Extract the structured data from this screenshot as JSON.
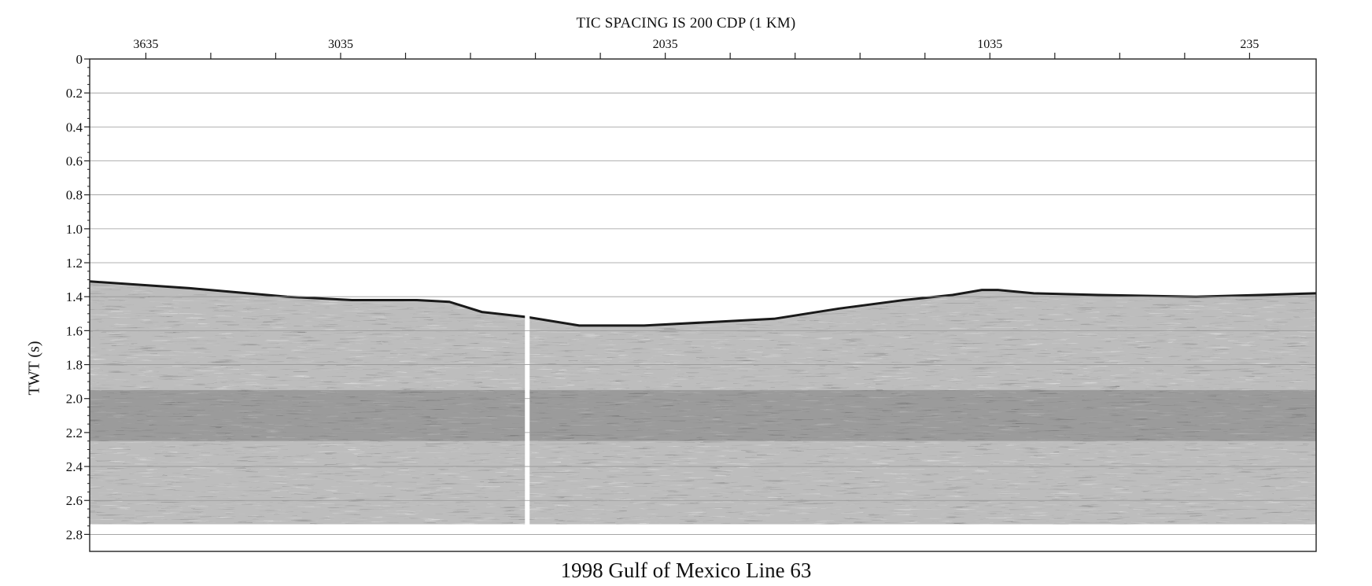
{
  "chart_data": {
    "type": "heatmap",
    "title": "1998 Gulf of Mexico Line 63",
    "subtitle": "TIC SPACING IS 200 CDP (1 KM)",
    "xlabel": "",
    "ylabel": "TWT (s)",
    "x_tick_labels": [
      "3635",
      "3035",
      "2035",
      "1035",
      "235"
    ],
    "x_tick_values": [
      3635,
      3035,
      2035,
      1035,
      235
    ],
    "x_minor_tick_values": [
      3435,
      3235,
      2835,
      2635,
      2435,
      2235,
      1835,
      1635,
      1435,
      1235,
      835,
      635,
      435
    ],
    "xlim": [
      3808,
      30
    ],
    "y_tick_labels": [
      "0",
      "0.2",
      "0.4",
      "0.6",
      "0.8",
      "1.0",
      "1.2",
      "1.4",
      "1.6",
      "1.8",
      "2.0",
      "2.2",
      "2.4",
      "2.6",
      "2.8"
    ],
    "y_tick_values": [
      0,
      0.2,
      0.4,
      0.6,
      0.8,
      1.0,
      1.2,
      1.4,
      1.6,
      1.8,
      2.0,
      2.2,
      2.4,
      2.6,
      2.8
    ],
    "ylim": [
      0,
      2.9
    ],
    "grid": true,
    "data_gap_cdp": 2460,
    "seafloor": {
      "cdp": [
        3808,
        3500,
        3200,
        3000,
        2800,
        2700,
        2600,
        2460,
        2300,
        2100,
        1900,
        1700,
        1500,
        1300,
        1150,
        1060,
        1010,
        900,
        700,
        400,
        200,
        30
      ],
      "twt": [
        1.31,
        1.35,
        1.4,
        1.42,
        1.42,
        1.43,
        1.49,
        1.52,
        1.57,
        1.57,
        1.55,
        1.53,
        1.47,
        1.42,
        1.39,
        1.36,
        1.36,
        1.38,
        1.39,
        1.4,
        1.39,
        1.38
      ]
    },
    "data_bottom_twt": 2.74,
    "colors": {
      "background": "#ffffff",
      "data_dark": "#1a1a1a",
      "grid": "#999999",
      "axis": "#222222"
    }
  }
}
